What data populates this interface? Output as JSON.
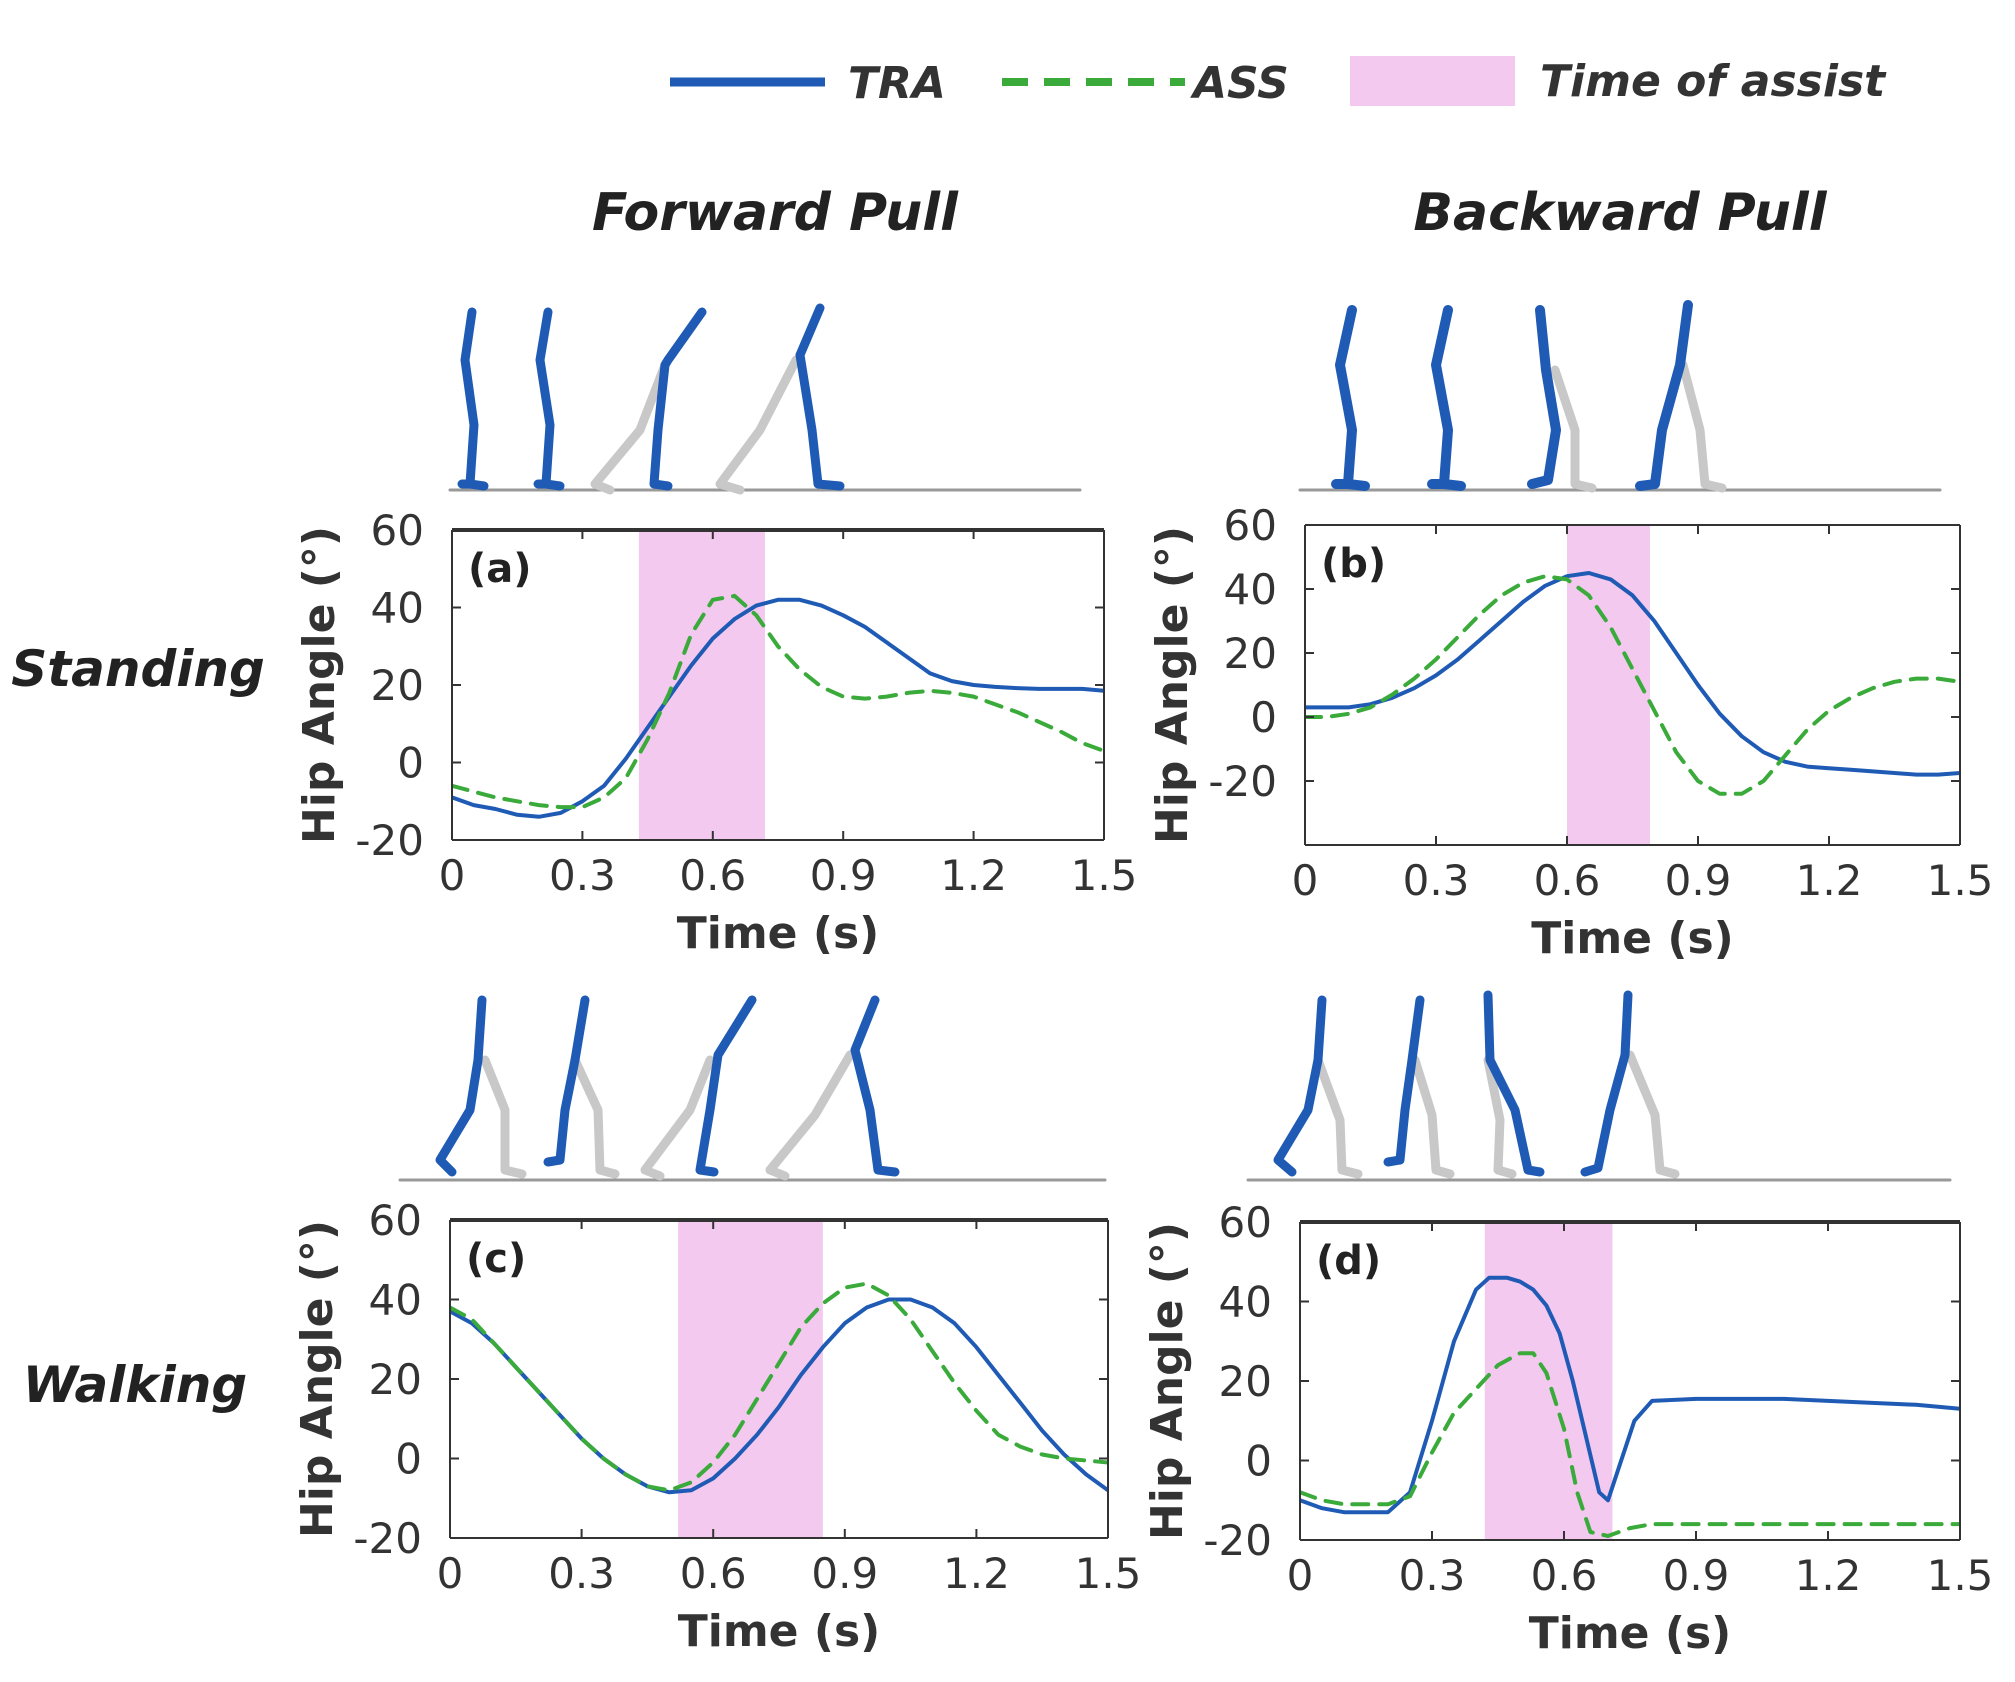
{
  "legend": {
    "tra_label": "TRA",
    "ass_label": "ASS",
    "assist_label": "Time of assist"
  },
  "columns": [
    "Forward Pull",
    "Backward Pull"
  ],
  "rows": [
    "Standing",
    "Walking"
  ],
  "colors": {
    "tra": "#1f5bb5",
    "ass": "#3aaa3a",
    "assist": "#f3c9ef",
    "figure_front": "#1f5bb5",
    "figure_back": "#c8c8c8",
    "axis": "#333333"
  },
  "chart_data": [
    {
      "type": "line",
      "panel_label": "(a)",
      "column": "Forward Pull",
      "row": "Standing",
      "xlabel": "Time (s)",
      "ylabel": "Hip Angle (°)",
      "xlim": [
        0,
        1.5
      ],
      "ylim": [
        -20,
        60
      ],
      "xticks": [
        "0",
        "0.3",
        "0.6",
        "0.9",
        "1.2",
        "1.5"
      ],
      "yticks": [
        "60",
        "40",
        "20",
        "0",
        "-20"
      ],
      "assist_window": [
        0.43,
        0.72
      ],
      "series": [
        {
          "name": "TRA",
          "x": [
            0,
            0.05,
            0.1,
            0.15,
            0.2,
            0.25,
            0.3,
            0.35,
            0.4,
            0.45,
            0.5,
            0.55,
            0.6,
            0.65,
            0.7,
            0.75,
            0.8,
            0.85,
            0.9,
            0.95,
            1.0,
            1.05,
            1.1,
            1.15,
            1.2,
            1.25,
            1.3,
            1.35,
            1.4,
            1.45,
            1.5
          ],
          "y": [
            -9,
            -11,
            -12,
            -13.5,
            -14,
            -13,
            -10,
            -6,
            1,
            9,
            17,
            25,
            32,
            37,
            40.5,
            42,
            42,
            40.5,
            38,
            35,
            31,
            27,
            23,
            21,
            20,
            19.5,
            19.2,
            19,
            19,
            19,
            18.5
          ]
        },
        {
          "name": "ASS",
          "x": [
            0,
            0.05,
            0.1,
            0.15,
            0.2,
            0.25,
            0.3,
            0.35,
            0.4,
            0.45,
            0.5,
            0.55,
            0.6,
            0.65,
            0.7,
            0.75,
            0.8,
            0.85,
            0.9,
            0.95,
            1.0,
            1.05,
            1.1,
            1.15,
            1.2,
            1.25,
            1.3,
            1.35,
            1.4,
            1.45,
            1.5
          ],
          "y": [
            -6,
            -7.5,
            -9,
            -10,
            -11,
            -11.5,
            -11.5,
            -9,
            -4,
            6,
            18,
            33,
            42,
            43,
            38,
            30,
            24,
            19.5,
            17,
            16.5,
            17,
            18,
            18.5,
            18,
            17,
            15,
            13,
            10.5,
            8,
            5,
            3
          ]
        }
      ]
    },
    {
      "type": "line",
      "panel_label": "(b)",
      "column": "Backward Pull",
      "row": "Standing",
      "xlabel": "Time (s)",
      "ylabel": "Hip Angle (°)",
      "xlim": [
        0,
        1.5
      ],
      "ylim": [
        -40,
        60
      ],
      "xticks": [
        "0",
        "0.3",
        "0.6",
        "0.9",
        "1.2",
        "1.5"
      ],
      "yticks": [
        "60",
        "40",
        "20",
        "0",
        "-20"
      ],
      "assist_window": [
        0.6,
        0.79
      ],
      "series": [
        {
          "name": "TRA",
          "x": [
            0,
            0.05,
            0.1,
            0.15,
            0.2,
            0.25,
            0.3,
            0.35,
            0.4,
            0.45,
            0.5,
            0.55,
            0.6,
            0.65,
            0.7,
            0.75,
            0.8,
            0.85,
            0.9,
            0.95,
            1.0,
            1.05,
            1.1,
            1.15,
            1.2,
            1.25,
            1.3,
            1.35,
            1.4,
            1.45,
            1.5
          ],
          "y": [
            3,
            3,
            3,
            4,
            6,
            9,
            13,
            18,
            24,
            30,
            36,
            41,
            44,
            45,
            43,
            38,
            30,
            20,
            10,
            1,
            -6,
            -11,
            -14,
            -15.5,
            -16,
            -16.5,
            -17,
            -17.5,
            -18,
            -18,
            -17.5
          ]
        },
        {
          "name": "ASS",
          "x": [
            0,
            0.05,
            0.1,
            0.15,
            0.2,
            0.25,
            0.3,
            0.35,
            0.4,
            0.45,
            0.5,
            0.55,
            0.6,
            0.65,
            0.7,
            0.75,
            0.8,
            0.85,
            0.9,
            0.95,
            1.0,
            1.05,
            1.1,
            1.15,
            1.2,
            1.25,
            1.3,
            1.35,
            1.4,
            1.45,
            1.5
          ],
          "y": [
            0,
            0,
            1,
            3,
            7,
            12,
            18,
            25,
            32,
            38,
            42,
            44,
            43,
            38,
            28,
            15,
            2,
            -11,
            -20,
            -24,
            -24,
            -20,
            -12,
            -4,
            2,
            6,
            9,
            11,
            12,
            12,
            11
          ]
        }
      ]
    },
    {
      "type": "line",
      "panel_label": "(c)",
      "column": "Forward Pull",
      "row": "Walking",
      "xlabel": "Time (s)",
      "ylabel": "Hip Angle (°)",
      "xlim": [
        0,
        1.5
      ],
      "ylim": [
        -20,
        60
      ],
      "xticks": [
        "0",
        "0.3",
        "0.6",
        "0.9",
        "1.2",
        "1.5"
      ],
      "yticks": [
        "60",
        "40",
        "20",
        "0",
        "-20"
      ],
      "assist_window": [
        0.52,
        0.85
      ],
      "series": [
        {
          "name": "TRA",
          "x": [
            0,
            0.05,
            0.1,
            0.15,
            0.2,
            0.25,
            0.3,
            0.35,
            0.4,
            0.45,
            0.5,
            0.55,
            0.6,
            0.65,
            0.7,
            0.75,
            0.8,
            0.85,
            0.9,
            0.95,
            1.0,
            1.05,
            1.1,
            1.15,
            1.2,
            1.25,
            1.3,
            1.35,
            1.4,
            1.45,
            1.5
          ],
          "y": [
            37,
            34,
            29,
            23,
            17,
            11,
            5,
            0,
            -4,
            -7,
            -8.5,
            -8,
            -5,
            0,
            6,
            13,
            21,
            28,
            34,
            38,
            40,
            40,
            38,
            34,
            28,
            21,
            14,
            7,
            1,
            -4,
            -8
          ]
        },
        {
          "name": "ASS",
          "x": [
            0,
            0.05,
            0.1,
            0.15,
            0.2,
            0.25,
            0.3,
            0.35,
            0.4,
            0.45,
            0.5,
            0.55,
            0.6,
            0.65,
            0.7,
            0.75,
            0.8,
            0.85,
            0.9,
            0.95,
            1.0,
            1.05,
            1.1,
            1.15,
            1.2,
            1.25,
            1.3,
            1.35,
            1.4,
            1.45,
            1.5
          ],
          "y": [
            38,
            35,
            29,
            23,
            17,
            11,
            5,
            0,
            -4,
            -7,
            -8,
            -6,
            -1,
            6,
            15,
            24,
            33,
            39,
            43,
            44,
            41,
            35,
            27,
            19,
            12,
            6,
            3,
            1,
            0,
            -0.5,
            -1
          ]
        }
      ]
    },
    {
      "type": "line",
      "panel_label": "(d)",
      "column": "Backward Pull",
      "row": "Walking",
      "xlabel": "Time (s)",
      "ylabel": "Hip Angle (°)",
      "xlim": [
        0,
        1.5
      ],
      "ylim": [
        -20,
        60
      ],
      "xticks": [
        "0",
        "0.3",
        "0.6",
        "0.9",
        "1.2",
        "1.5"
      ],
      "yticks": [
        "60",
        "40",
        "20",
        "0",
        "-20"
      ],
      "assist_window": [
        0.42,
        0.71
      ],
      "series": [
        {
          "name": "TRA",
          "x": [
            0,
            0.05,
            0.1,
            0.15,
            0.2,
            0.25,
            0.3,
            0.35,
            0.4,
            0.43,
            0.47,
            0.5,
            0.53,
            0.56,
            0.59,
            0.62,
            0.65,
            0.68,
            0.7,
            0.73,
            0.76,
            0.8,
            0.9,
            1.0,
            1.1,
            1.2,
            1.3,
            1.4,
            1.5
          ],
          "y": [
            -10,
            -12,
            -13,
            -13,
            -13,
            -8,
            10,
            30,
            43,
            46,
            46,
            45,
            43,
            39,
            32,
            20,
            6,
            -8,
            -10,
            0,
            10,
            15,
            15.5,
            15.5,
            15.5,
            15,
            14.5,
            14,
            13
          ]
        },
        {
          "name": "ASS",
          "x": [
            0,
            0.05,
            0.1,
            0.15,
            0.2,
            0.25,
            0.3,
            0.35,
            0.4,
            0.45,
            0.5,
            0.53,
            0.56,
            0.6,
            0.63,
            0.66,
            0.7,
            0.75,
            0.8,
            0.9,
            1.0,
            1.2,
            1.4,
            1.5
          ],
          "y": [
            -8,
            -10,
            -11,
            -11,
            -11,
            -9,
            2,
            12,
            18,
            24,
            27,
            27,
            22,
            8,
            -8,
            -18,
            -19,
            -17,
            -16,
            -16,
            -16,
            -16,
            -16,
            -16
          ]
        }
      ]
    }
  ]
}
